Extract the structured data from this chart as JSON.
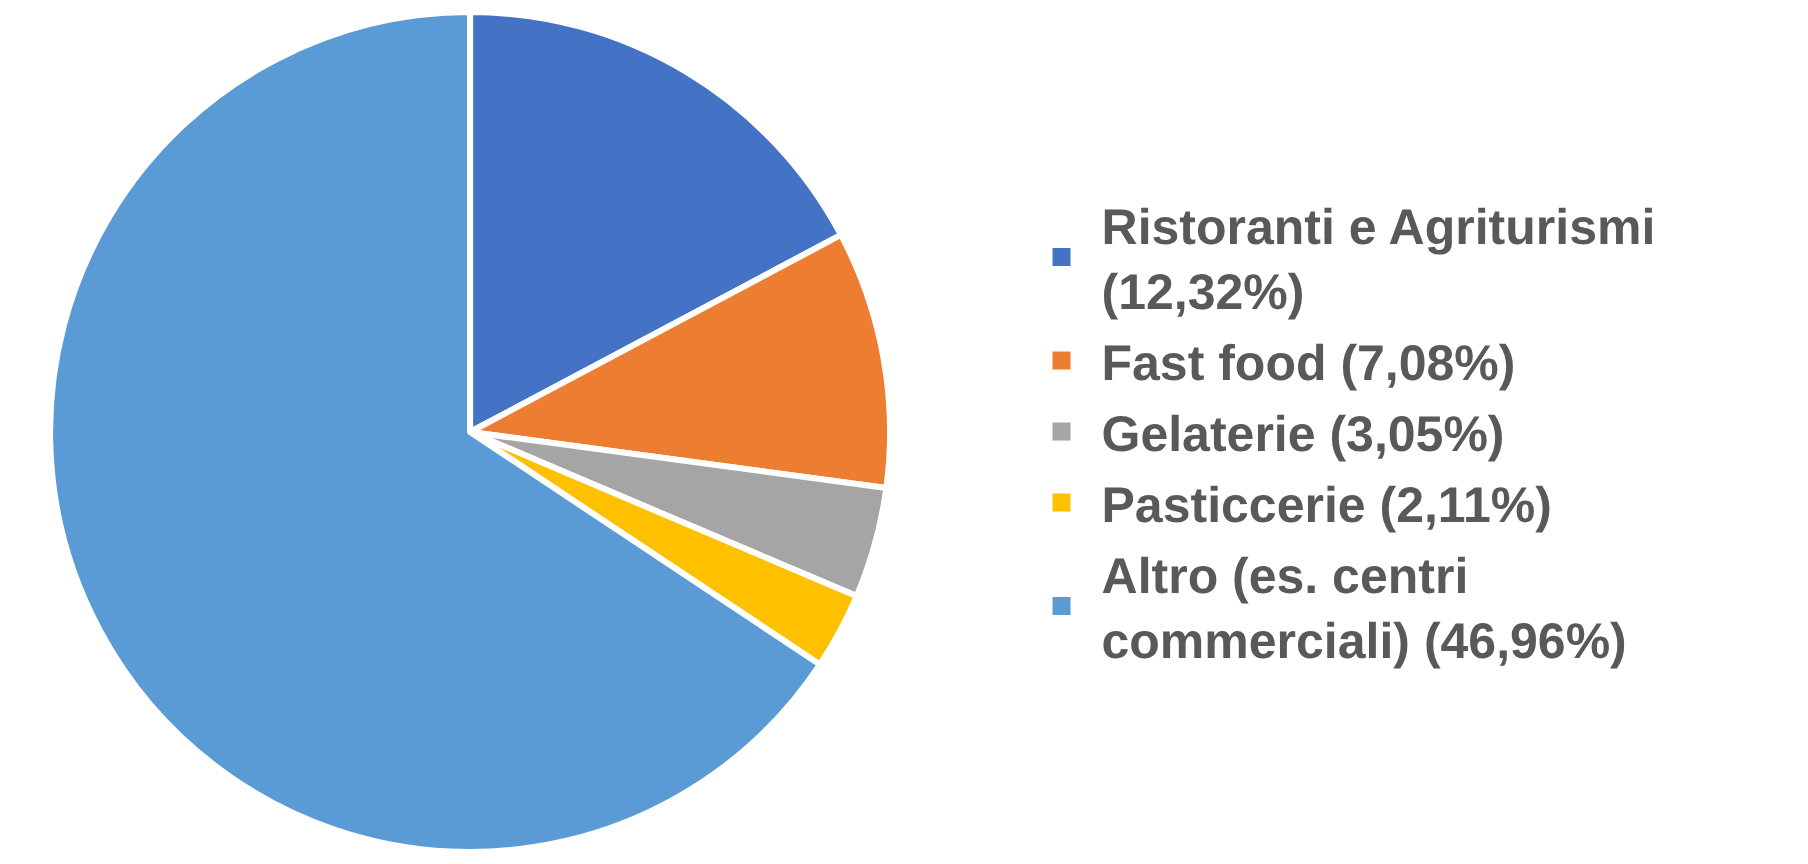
{
  "chart_data": {
    "type": "pie",
    "categories": [
      "Ristoranti e Agriturismi (12,32%)",
      "Fast food (7,08%)",
      "Gelaterie (3,05%)",
      "Pasticcerie (2,11%)",
      "Altro (es. centri commerciali) (46,96%)"
    ],
    "values": [
      12.32,
      7.08,
      3.05,
      2.11,
      46.96
    ],
    "colors": [
      "#4472c4",
      "#ed7d31",
      "#a5a5a5",
      "#ffc000",
      "#5b9bd5"
    ],
    "legend": "right"
  }
}
